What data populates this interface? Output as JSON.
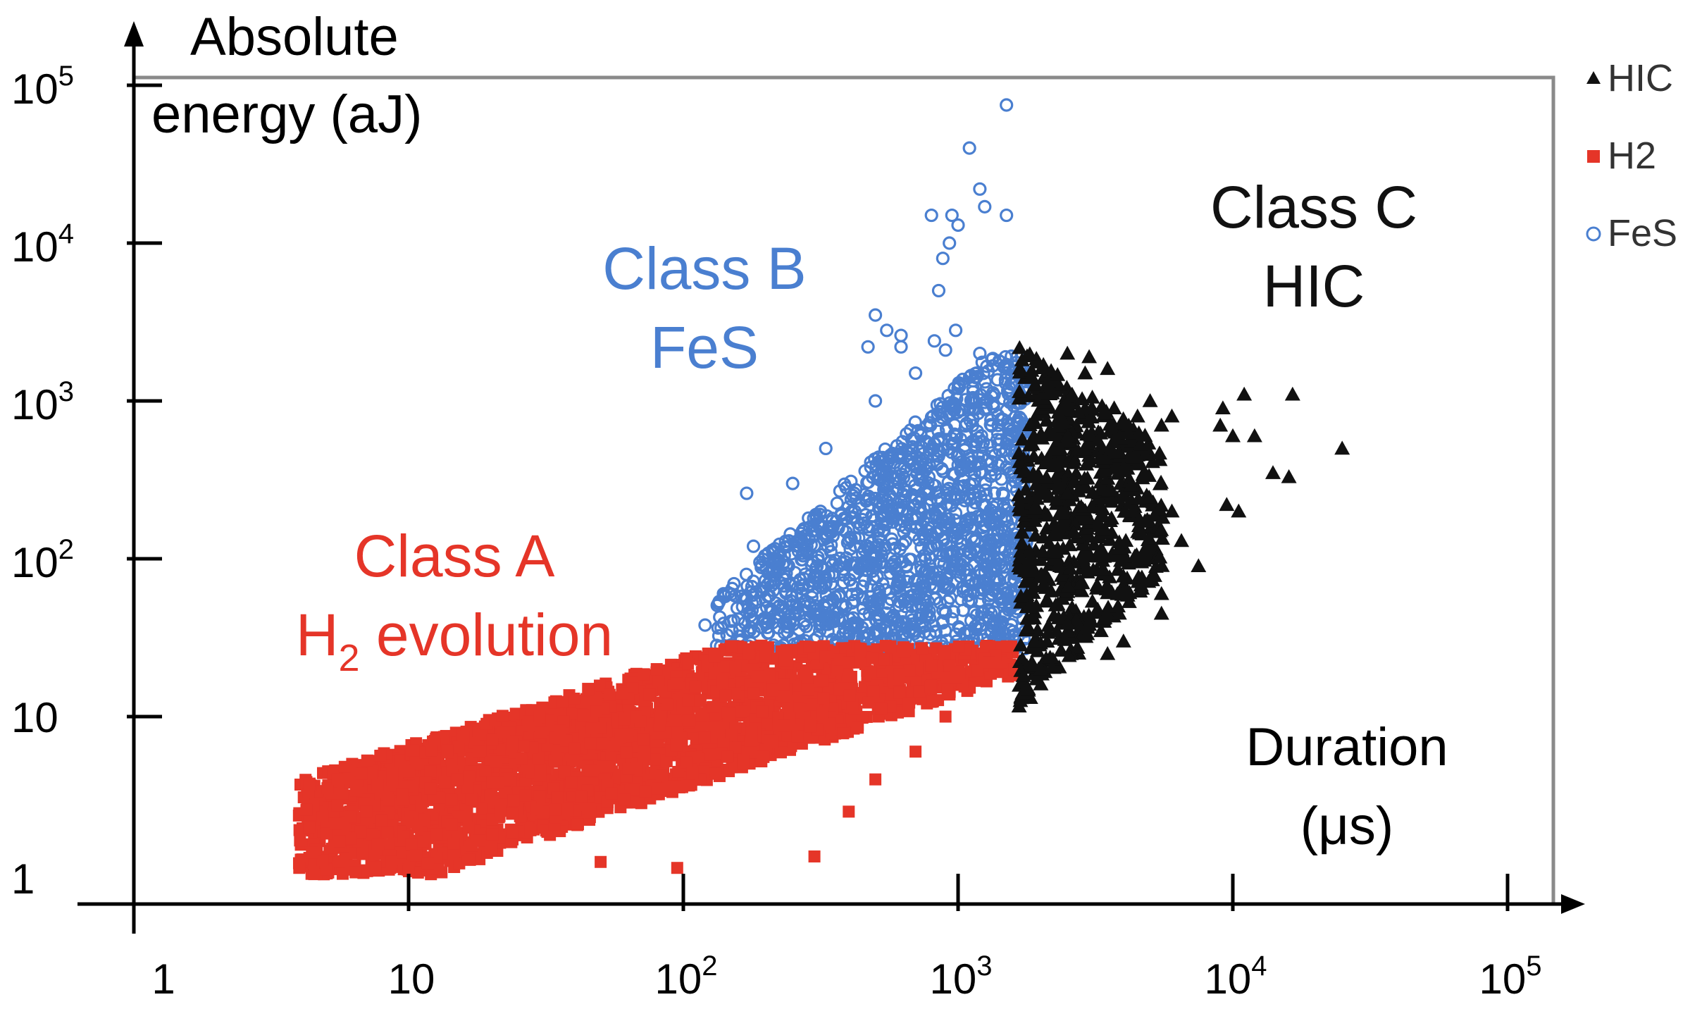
{
  "chart_data": {
    "type": "scatter",
    "x_scale": "log",
    "y_scale": "log",
    "xlim": [
      0.6,
      160000
    ],
    "ylim": [
      1,
      110000
    ],
    "x_ticks": [
      {
        "value": 1,
        "base": "1",
        "exp": ""
      },
      {
        "value": 10,
        "base": "10",
        "exp": ""
      },
      {
        "value": 100,
        "base": "10",
        "exp": "2"
      },
      {
        "value": 1000,
        "base": "10",
        "exp": "3"
      },
      {
        "value": 10000,
        "base": "10",
        "exp": "4"
      },
      {
        "value": 100000,
        "base": "10",
        "exp": "5"
      }
    ],
    "y_ticks": [
      {
        "value": 1,
        "base": "1",
        "exp": ""
      },
      {
        "value": 10,
        "base": "10",
        "exp": ""
      },
      {
        "value": 100,
        "base": "10",
        "exp": "2"
      },
      {
        "value": 1000,
        "base": "10",
        "exp": "3"
      },
      {
        "value": 10000,
        "base": "10",
        "exp": "4"
      },
      {
        "value": 100000,
        "base": "10",
        "exp": "5"
      }
    ],
    "ylabel_lines": [
      "Absolute",
      "energy (aJ)"
    ],
    "xlabel_lines": [
      "Duration",
      "(μs)"
    ],
    "legend": {
      "position": "top-right",
      "entries": [
        {
          "label": "HIC",
          "marker": "triangle",
          "color": "#111111"
        },
        {
          "label": "H2",
          "marker": "square",
          "color": "#e53528"
        },
        {
          "label": "FeS",
          "marker": "circle",
          "color": "#4a7fd0"
        }
      ]
    },
    "annotations": [
      {
        "id": "class-a",
        "lines": [
          "Class A",
          "H2 evolution"
        ],
        "color": "#e53528",
        "subscript": {
          "line": 1,
          "text": "2",
          "after": "H",
          "rest": " evolution"
        }
      },
      {
        "id": "class-b",
        "lines": [
          "Class B",
          "FeS"
        ],
        "color": "#4a7fd0"
      },
      {
        "id": "class-c",
        "lines": [
          "Class C",
          "HIC"
        ],
        "color": "#111111"
      }
    ],
    "series": [
      {
        "name": "H2",
        "marker": "square",
        "color": "#e53528",
        "cluster": {
          "x_log_range": [
            0.6,
            3.2
          ],
          "y_log_range": [
            0.0,
            1.45
          ],
          "count": 2600,
          "trend": "energy increases with duration"
        },
        "points": [
          [
            4,
            1.1
          ],
          [
            7,
            2.5
          ],
          [
            8,
            2.2
          ],
          [
            10,
            4.5
          ],
          [
            15,
            4
          ],
          [
            12,
            3.5
          ],
          [
            18,
            6
          ],
          [
            22,
            8
          ],
          [
            30,
            10
          ],
          [
            40,
            13
          ],
          [
            45,
            15
          ],
          [
            60,
            14
          ],
          [
            80,
            20
          ],
          [
            130,
            24
          ],
          [
            200,
            24
          ],
          [
            400,
            22
          ],
          [
            800,
            21
          ],
          [
            1300,
            22
          ],
          [
            1600,
            20
          ],
          [
            20,
            1.5
          ],
          [
            50,
            1.2
          ],
          [
            95,
            1.1
          ],
          [
            300,
            1.3
          ],
          [
            400,
            2.5
          ],
          [
            500,
            4
          ],
          [
            700,
            6
          ],
          [
            900,
            10
          ]
        ]
      },
      {
        "name": "FeS",
        "marker": "circle",
        "color": "#4a7fd0",
        "cluster": {
          "x_log_range": [
            2.1,
            3.25
          ],
          "y_log_range": [
            1.4,
            3.3
          ],
          "count": 1500,
          "trend": "energy increases with duration"
        },
        "points": [
          [
            1500,
            75000
          ],
          [
            1100,
            40000
          ],
          [
            1200,
            22000
          ],
          [
            1250,
            17000
          ],
          [
            1500,
            15000
          ],
          [
            800,
            15000
          ],
          [
            950,
            15000
          ],
          [
            1000,
            13000
          ],
          [
            930,
            10000
          ],
          [
            880,
            8000
          ],
          [
            850,
            5000
          ],
          [
            500,
            3500
          ],
          [
            550,
            2800
          ],
          [
            620,
            2600
          ],
          [
            980,
            2800
          ],
          [
            820,
            2400
          ],
          [
            620,
            2200
          ],
          [
            470,
            2200
          ],
          [
            900,
            2100
          ],
          [
            1200,
            2000
          ],
          [
            1500,
            1700
          ],
          [
            170,
            260
          ],
          [
            180,
            120
          ],
          [
            190,
            95
          ],
          [
            140,
            60
          ],
          [
            120,
            38
          ],
          [
            250,
            300
          ],
          [
            330,
            500
          ],
          [
            500,
            1000
          ],
          [
            700,
            1500
          ],
          [
            1000,
            1200
          ],
          [
            1400,
            700
          ],
          [
            1600,
            450
          ],
          [
            1700,
            250
          ],
          [
            1600,
            100
          ],
          [
            1500,
            60
          ],
          [
            1400,
            35
          ]
        ]
      },
      {
        "name": "HIC",
        "marker": "triangle",
        "color": "#111111",
        "cluster": {
          "x_log_range": [
            3.2,
            3.78
          ],
          "y_log_range": [
            1.05,
            3.35
          ],
          "count": 700
        },
        "points": [
          [
            2500,
            2000
          ],
          [
            3000,
            1900
          ],
          [
            2900,
            1500
          ],
          [
            3500,
            1600
          ],
          [
            2600,
            1100
          ],
          [
            2900,
            900
          ],
          [
            3700,
            900
          ],
          [
            4500,
            800
          ],
          [
            5000,
            1000
          ],
          [
            5500,
            700
          ],
          [
            6000,
            800
          ],
          [
            6000,
            200
          ],
          [
            6500,
            130
          ],
          [
            7500,
            90
          ],
          [
            9000,
            700
          ],
          [
            9200,
            900
          ],
          [
            10000,
            600
          ],
          [
            11000,
            1100
          ],
          [
            12000,
            600
          ],
          [
            14000,
            350
          ],
          [
            16000,
            330
          ],
          [
            16500,
            1100
          ],
          [
            25000,
            500
          ],
          [
            9500,
            220
          ],
          [
            10500,
            200
          ],
          [
            5500,
            60
          ],
          [
            5500,
            45
          ],
          [
            4000,
            30
          ],
          [
            3500,
            25
          ],
          [
            2000,
            20
          ],
          [
            1800,
            15
          ],
          [
            1900,
            30
          ]
        ]
      }
    ]
  }
}
